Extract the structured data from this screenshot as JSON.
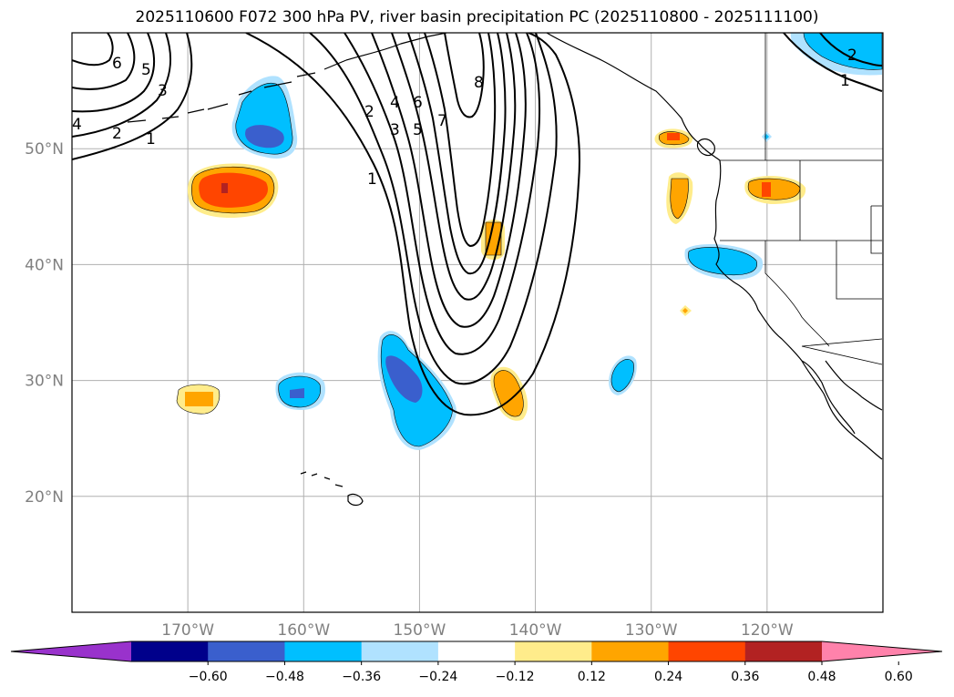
{
  "title": "2025110600 F072 300 hPa PV, river basin precipitation PC (2025110800 - 2025111100)",
  "map": {
    "lon_range": [
      -180,
      -110
    ],
    "lat_range": [
      10,
      60
    ],
    "lat_ticks": [
      {
        "value": 20,
        "label": "20°N"
      },
      {
        "value": 30,
        "label": "30°N"
      },
      {
        "value": 40,
        "label": "40°N"
      },
      {
        "value": 50,
        "label": "50°N"
      }
    ],
    "lon_ticks": [
      {
        "value": -170,
        "label": "170°W"
      },
      {
        "value": -160,
        "label": "160°W"
      },
      {
        "value": -150,
        "label": "150°W"
      },
      {
        "value": -140,
        "label": "140°W"
      },
      {
        "value": -130,
        "label": "130°W"
      },
      {
        "value": -120,
        "label": "120°W"
      }
    ],
    "grid": true
  },
  "contour_labels": [
    "1",
    "2",
    "3",
    "4",
    "5",
    "6",
    "7",
    "8"
  ],
  "colorbar": {
    "colors": [
      "#9932cc",
      "#00008b",
      "#3a5fcd",
      "#00bfff",
      "#b0e2ff",
      "#ffffff",
      "#ffec8b",
      "#ffa500",
      "#ff4500",
      "#b22222",
      "#ff82ab"
    ],
    "tick_labels": [
      "−0.60",
      "−0.48",
      "−0.36",
      "−0.24",
      "−0.12",
      "0.12",
      "0.24",
      "0.36",
      "0.48",
      "0.60"
    ],
    "extend": "both"
  }
}
